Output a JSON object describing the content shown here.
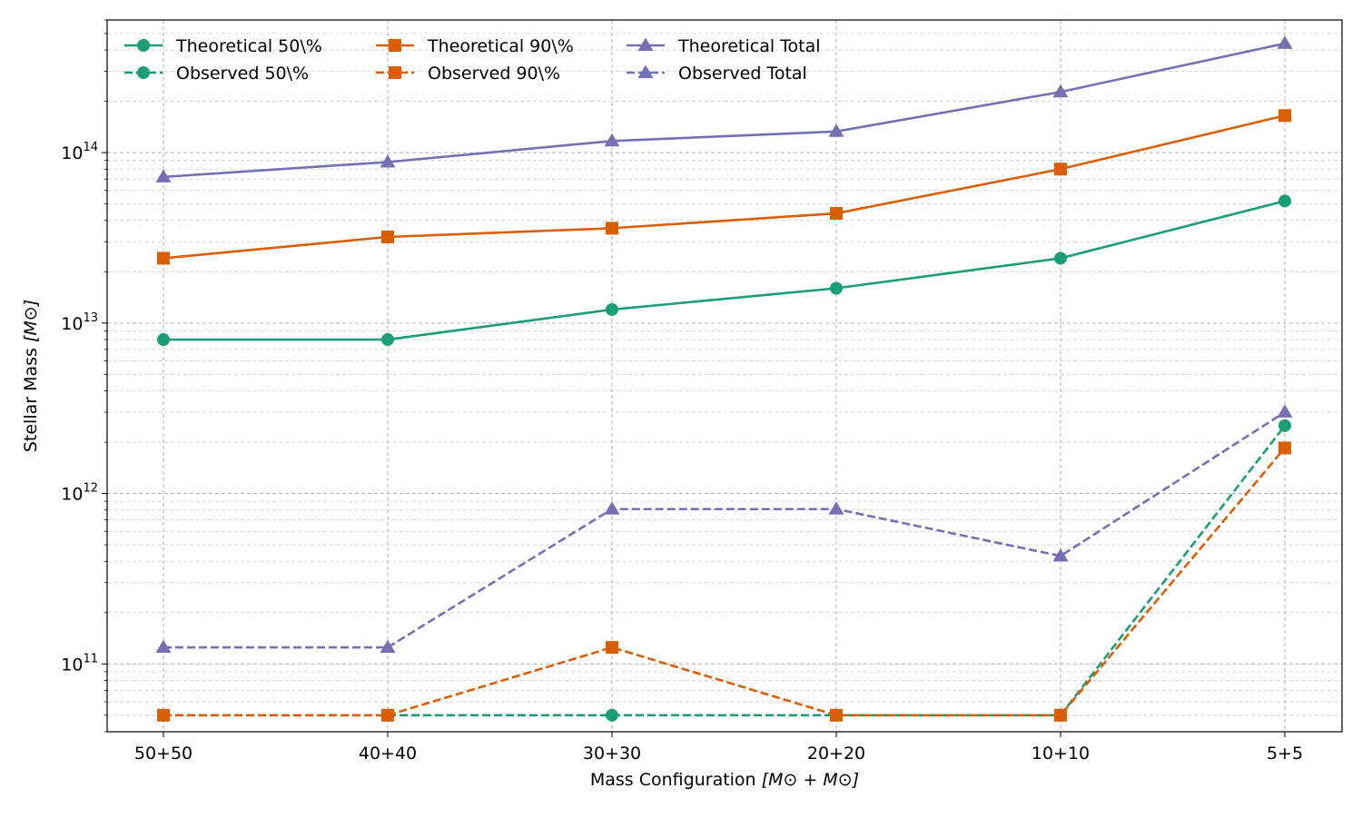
{
  "chart_data": {
    "type": "line",
    "title": "",
    "xlabel": "Mass Configuration",
    "xlabel_unit": "[M⊙ + M⊙]",
    "ylabel": "Stellar Mass",
    "ylabel_unit": "[M⊙]",
    "yscale": "log",
    "ylim": [
      40000000000.0,
      600000000000000.0
    ],
    "grid": true,
    "legend_position": "top-left",
    "categories": [
      "50+50",
      "40+40",
      "30+30",
      "20+20",
      "10+10",
      "5+5"
    ],
    "y_ticks": [
      {
        "base": "10",
        "exp": "11",
        "value": 100000000000.0
      },
      {
        "base": "10",
        "exp": "12",
        "value": 1000000000000.0
      },
      {
        "base": "10",
        "exp": "13",
        "value": 10000000000000.0
      },
      {
        "base": "10",
        "exp": "14",
        "value": 100000000000000.0
      }
    ],
    "series": [
      {
        "name": "Theoretical 50\\%",
        "color": "#1b9e77",
        "marker": "circle",
        "dash": "solid",
        "values": [
          8000000000000.0,
          8000000000000.0,
          12000000000000.0,
          16000000000000.0,
          24000000000000.0,
          52000000000000.0
        ]
      },
      {
        "name": "Observed 50\\%",
        "color": "#1b9e77",
        "marker": "circle",
        "dash": "dashed",
        "values": [
          50000000000.0,
          50000000000.0,
          50000000000.0,
          50000000000.0,
          50000000000.0,
          2500000000000.0
        ]
      },
      {
        "name": "Theoretical 90\\%",
        "color": "#d95f02",
        "marker": "square",
        "dash": "solid",
        "values": [
          24000000000000.0,
          32000000000000.0,
          36000000000000.0,
          44000000000000.0,
          80000000000000.0,
          165000000000000.0
        ]
      },
      {
        "name": "Observed 90\\%",
        "color": "#d95f02",
        "marker": "square",
        "dash": "dashed",
        "values": [
          50000000000.0,
          50000000000.0,
          125000000000.0,
          50000000000.0,
          50000000000.0,
          1850000000000.0
        ]
      },
      {
        "name": "Theoretical Total",
        "color": "#7570b3",
        "marker": "triangle",
        "dash": "solid",
        "values": [
          72000000000000.0,
          88000000000000.0,
          117000000000000.0,
          133000000000000.0,
          227000000000000.0,
          437000000000000.0
        ]
      },
      {
        "name": "Observed Total",
        "color": "#7570b3",
        "marker": "triangle",
        "dash": "dashed",
        "values": [
          125000000000.0,
          125000000000.0,
          810000000000.0,
          810000000000.0,
          430000000000.0,
          3000000000000.0
        ]
      }
    ]
  }
}
